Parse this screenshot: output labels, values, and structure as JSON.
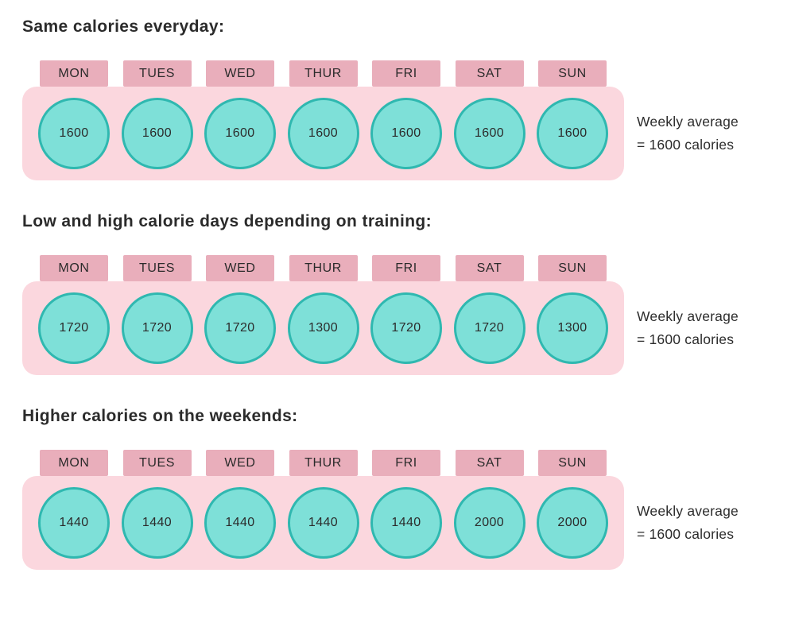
{
  "days": [
    "MON",
    "TUES",
    "WED",
    "THUR",
    "FRI",
    "SAT",
    "SUN"
  ],
  "sections": [
    {
      "title": "Same calories everyday:",
      "values": [
        "1600",
        "1600",
        "1600",
        "1600",
        "1600",
        "1600",
        "1600"
      ],
      "average_line1": "Weekly average",
      "average_line2": "= 1600 calories"
    },
    {
      "title": "Low and high calorie days depending on training:",
      "values": [
        "1720",
        "1720",
        "1720",
        "1300",
        "1720",
        "1720",
        "1300"
      ],
      "average_line1": "Weekly average",
      "average_line2": "= 1600 calories"
    },
    {
      "title": "Higher calories on the weekends:",
      "values": [
        "1440",
        "1440",
        "1440",
        "1440",
        "1440",
        "2000",
        "2000"
      ],
      "average_line1": "Weekly average",
      "average_line2": "= 1600 calories"
    }
  ],
  "colors": {
    "panel_pink": "#fbd7de",
    "tab_pink": "#e9aebb",
    "circle_fill": "#7ee0d8",
    "circle_border": "#2fb8b0",
    "text_dark": "#2b2b2b"
  }
}
